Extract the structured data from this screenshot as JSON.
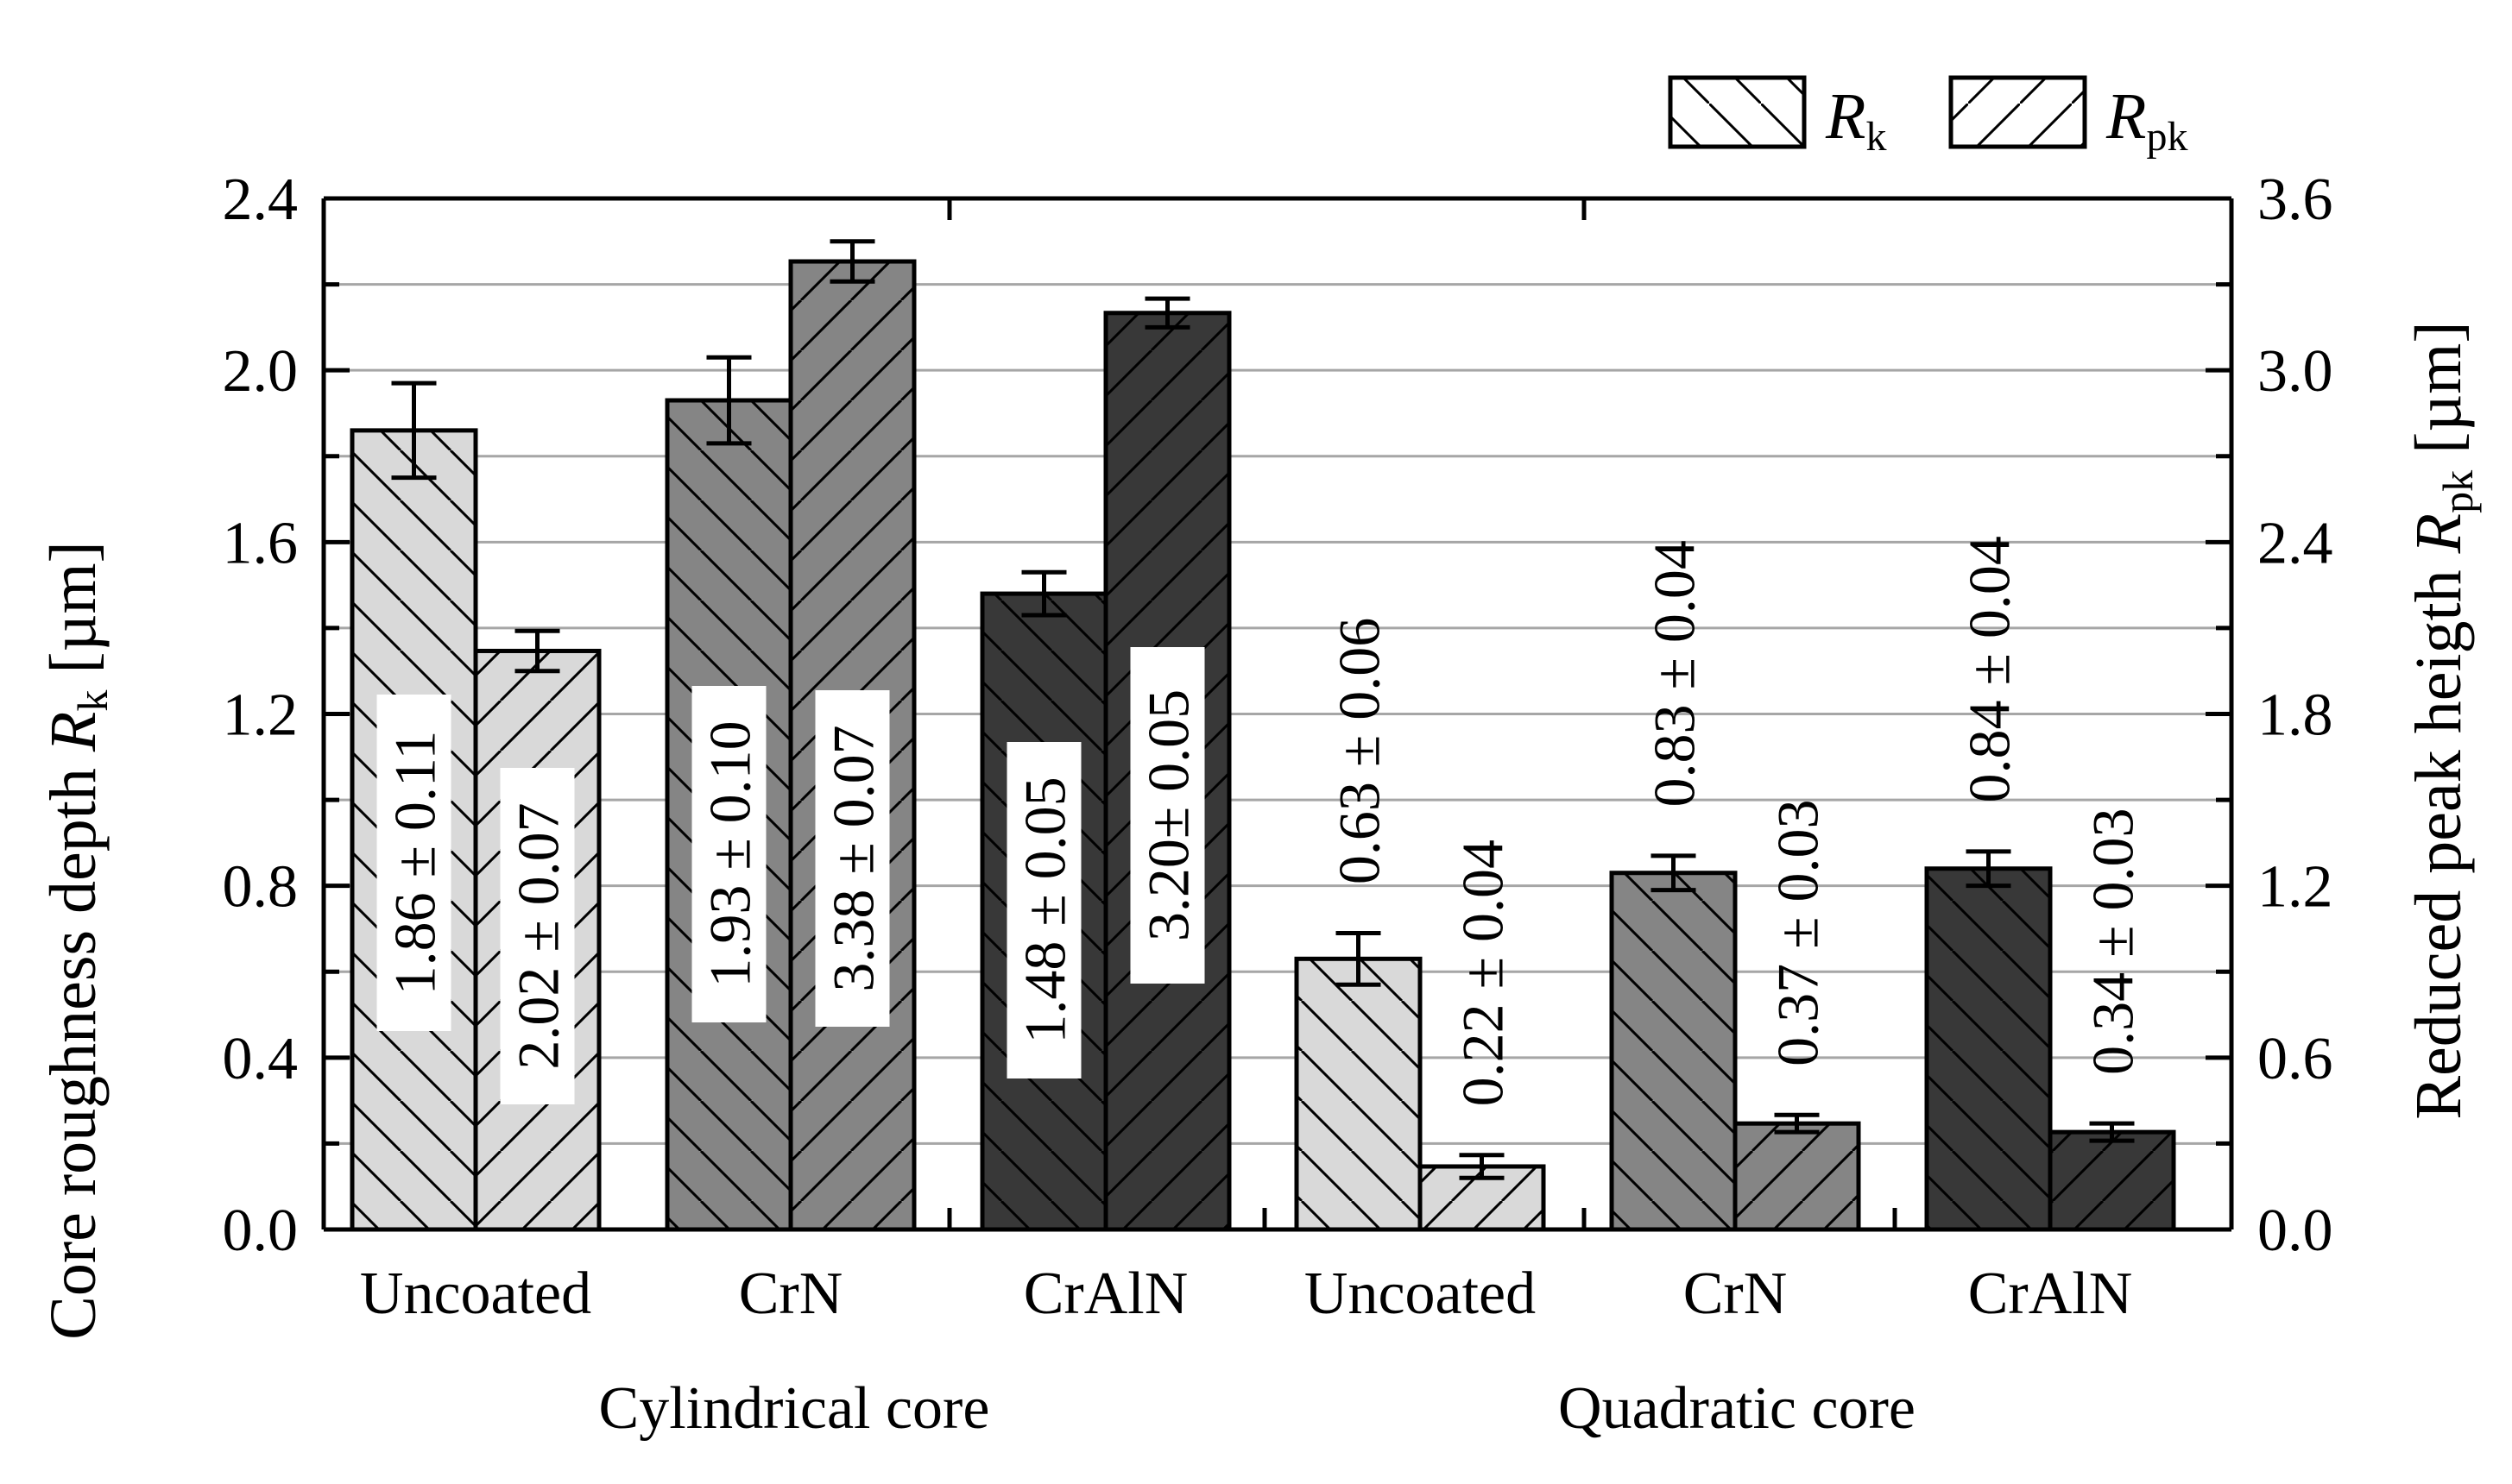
{
  "chart_data": {
    "type": "bar",
    "groups": [
      {
        "name": "Cylindrical core",
        "categories": [
          "Uncoated",
          "CrN",
          "CrAlN"
        ]
      },
      {
        "name": "Quadratic core",
        "categories": [
          "Uncoated",
          "CrN",
          "CrAlN"
        ]
      }
    ],
    "categories": [
      "Uncoated",
      "CrN",
      "CrAlN",
      "Uncoated",
      "CrN",
      "CrAlN"
    ],
    "series": [
      {
        "name": "Rk",
        "axis": "left",
        "hatch": "backslash",
        "values": [
          1.86,
          1.93,
          1.48,
          0.63,
          0.83,
          0.84
        ],
        "errors": [
          0.11,
          0.1,
          0.05,
          0.06,
          0.04,
          0.04
        ],
        "labels": [
          "1.86 ± 0.11",
          "1.93 ± 0.10",
          "1.48 ± 0.05",
          "0.63 ± 0.06",
          "0.83 ± 0.04",
          "0.84 ± 0.04"
        ]
      },
      {
        "name": "Rpk",
        "axis": "right",
        "hatch": "slash",
        "values": [
          2.02,
          3.38,
          3.2,
          0.22,
          0.37,
          0.34
        ],
        "errors": [
          0.07,
          0.07,
          0.05,
          0.04,
          0.03,
          0.03
        ],
        "labels": [
          "2.02 ± 0.07",
          "3.38 ± 0.07",
          "3.20± 0.05",
          "0.22 ± 0.04",
          "0.37 ± 0.03",
          "0.34 ± 0.03"
        ]
      }
    ],
    "category_colors": [
      "#d9d9d9",
      "#858585",
      "#383838",
      "#d9d9d9",
      "#858585",
      "#383838"
    ],
    "left_axis": {
      "title_prefix": "Core roughness depth ",
      "symbol": "R",
      "subscript": "k",
      "unit": " [µm]",
      "ylim": [
        0,
        2.4
      ],
      "ticks": [
        "0.0",
        "0.4",
        "0.8",
        "1.2",
        "1.6",
        "2.0",
        "2.4"
      ]
    },
    "right_axis": {
      "title_prefix": "Reduced peak heigth ",
      "symbol": "R",
      "subscript": "pk",
      "unit": " [µm]",
      "ylim": [
        0,
        3.6
      ],
      "ticks": [
        "0.0",
        "0.6",
        "1.2",
        "1.8",
        "2.4",
        "3.0",
        "3.6"
      ]
    },
    "legend": [
      {
        "symbol": "R",
        "subscript": "k"
      },
      {
        "symbol": "R",
        "subscript": "pk"
      }
    ],
    "grid": true,
    "legend_position": "top-right"
  }
}
